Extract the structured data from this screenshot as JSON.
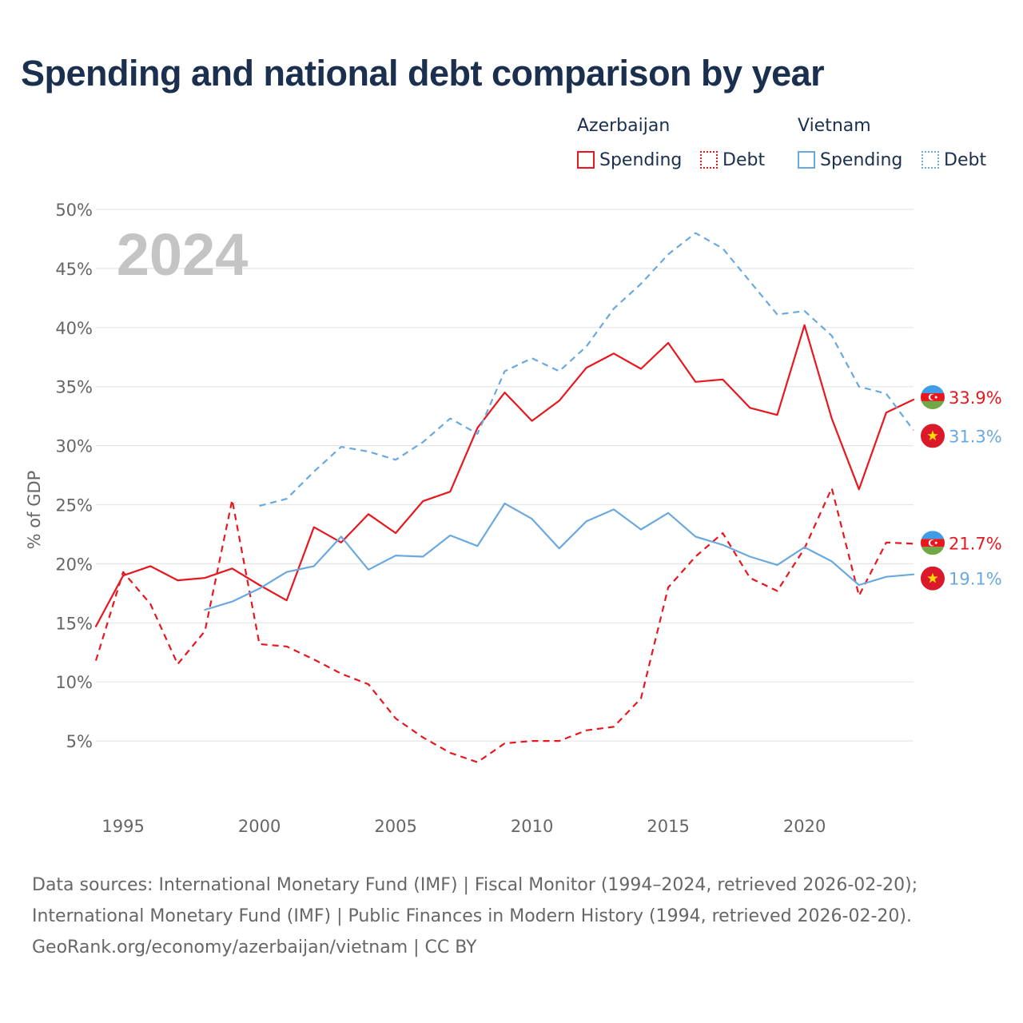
{
  "title": "Spending and national debt comparison by year",
  "legend": {
    "groups": [
      {
        "country": "Azerbaijan",
        "spending_label": "Spending",
        "debt_label": "Debt",
        "color": "#e8171f"
      },
      {
        "country": "Vietnam",
        "spending_label": "Spending",
        "debt_label": "Debt",
        "color": "#6aa8e0"
      }
    ]
  },
  "sources": {
    "line1": "Data sources: International Monetary Fund (IMF) | Fiscal Monitor (1994–2024, retrieved 2026-02-20);",
    "line2": "International Monetary Fund (IMF) | Public Finances in Modern History (1994, retrieved 2026-02-20).",
    "line3": "GeoRank.org/economy/azerbaijan/vietnam | CC BY"
  },
  "chart_data": {
    "type": "line",
    "title": "Spending and national debt comparison by year",
    "year_label": "2024",
    "xlabel": "",
    "ylabel": "% of GDP",
    "xlim": [
      1994,
      2024
    ],
    "ylim": [
      0,
      50
    ],
    "x_ticks": [
      1995,
      2000,
      2005,
      2010,
      2015,
      2020
    ],
    "y_ticks": [
      {
        "value": 5,
        "label": "5%"
      },
      {
        "value": 10,
        "label": "10%"
      },
      {
        "value": 15,
        "label": "15%"
      },
      {
        "value": 20,
        "label": "20%"
      },
      {
        "value": 25,
        "label": "25%"
      },
      {
        "value": 30,
        "label": "30%"
      },
      {
        "value": 35,
        "label": "35%"
      },
      {
        "value": 40,
        "label": "40%"
      },
      {
        "value": 45,
        "label": "45%"
      },
      {
        "value": 50,
        "label": "50%"
      }
    ],
    "grid": true,
    "series": [
      {
        "name": "Azerbaijan Spending",
        "country": "Azerbaijan",
        "metric": "Spending",
        "color": "#e8171f",
        "dashed": false,
        "end_label": "33.9%",
        "flag": "azerbaijan",
        "x": [
          1994,
          1995,
          1996,
          1997,
          1998,
          1999,
          2000,
          2001,
          2002,
          2003,
          2004,
          2005,
          2006,
          2007,
          2008,
          2009,
          2010,
          2011,
          2012,
          2013,
          2014,
          2015,
          2016,
          2017,
          2018,
          2019,
          2020,
          2021,
          2022,
          2023,
          2024
        ],
        "values": [
          14.7,
          19.0,
          19.8,
          18.6,
          18.8,
          19.6,
          18.2,
          16.9,
          23.1,
          21.8,
          24.2,
          22.6,
          25.3,
          26.1,
          31.5,
          34.5,
          32.1,
          33.8,
          36.6,
          37.8,
          36.5,
          38.7,
          35.4,
          35.6,
          33.2,
          32.6,
          40.2,
          32.3,
          26.3,
          32.8,
          33.9
        ]
      },
      {
        "name": "Azerbaijan Debt",
        "country": "Azerbaijan",
        "metric": "Debt",
        "color": "#e8171f",
        "dashed": true,
        "end_label": "21.7%",
        "flag": "azerbaijan",
        "x": [
          1994,
          1995,
          1996,
          1997,
          1998,
          1999,
          2000,
          2001,
          2002,
          2003,
          2004,
          2005,
          2006,
          2007,
          2008,
          2009,
          2010,
          2011,
          2012,
          2013,
          2014,
          2015,
          2016,
          2017,
          2018,
          2019,
          2020,
          2021,
          2022,
          2023,
          2024
        ],
        "values": [
          11.8,
          19.3,
          16.6,
          11.5,
          14.3,
          25.4,
          13.2,
          13.0,
          11.9,
          10.7,
          9.8,
          6.9,
          5.3,
          4.0,
          3.2,
          4.8,
          5.0,
          5.0,
          5.9,
          6.2,
          8.6,
          18.0,
          20.6,
          22.6,
          18.8,
          17.7,
          21.3,
          26.4,
          17.3,
          21.8,
          21.7
        ]
      },
      {
        "name": "Vietnam Spending",
        "country": "Vietnam",
        "metric": "Spending",
        "color": "#6aa8e0",
        "dashed": false,
        "end_label": "19.1%",
        "flag": "vietnam",
        "x": [
          1998,
          1999,
          2000,
          2001,
          2002,
          2003,
          2004,
          2005,
          2006,
          2007,
          2008,
          2009,
          2010,
          2011,
          2012,
          2013,
          2014,
          2015,
          2016,
          2017,
          2018,
          2019,
          2020,
          2021,
          2022,
          2023,
          2024
        ],
        "values": [
          16.1,
          16.8,
          17.9,
          19.3,
          19.8,
          22.3,
          19.5,
          20.7,
          20.6,
          22.4,
          21.5,
          25.1,
          23.8,
          21.3,
          23.6,
          24.6,
          22.9,
          24.3,
          22.3,
          21.6,
          20.6,
          19.9,
          21.4,
          20.2,
          18.2,
          18.9,
          19.1
        ]
      },
      {
        "name": "Vietnam Debt",
        "country": "Vietnam",
        "metric": "Debt",
        "color": "#6aa8e0",
        "dashed": true,
        "end_label": "31.3%",
        "flag": "vietnam",
        "x": [
          2000,
          2001,
          2002,
          2003,
          2004,
          2005,
          2006,
          2007,
          2008,
          2009,
          2010,
          2011,
          2012,
          2013,
          2014,
          2015,
          2016,
          2017,
          2018,
          2019,
          2020,
          2021,
          2022,
          2023,
          2024
        ],
        "values": [
          24.9,
          25.5,
          27.8,
          29.9,
          29.5,
          28.8,
          30.3,
          32.3,
          31.0,
          36.3,
          37.4,
          36.3,
          38.4,
          41.6,
          43.7,
          46.2,
          48.0,
          46.7,
          43.9,
          41.1,
          41.4,
          39.3,
          35.0,
          34.4,
          31.3
        ]
      }
    ]
  }
}
